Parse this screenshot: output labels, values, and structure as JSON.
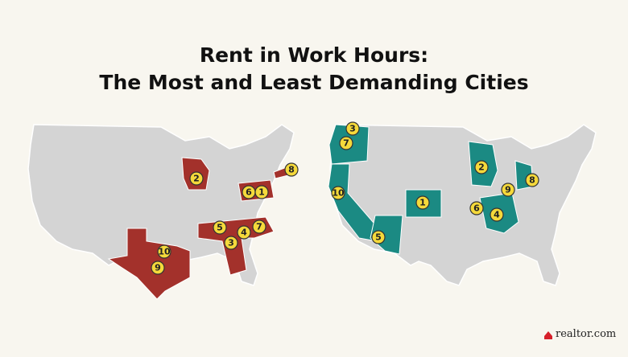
{
  "title": [
    "Rent in Work Hours:",
    "The Most and Least Demanding Cities"
  ],
  "maps": [
    {
      "markers": [
        "2",
        "8",
        "6",
        "1",
        "5",
        "4",
        "7",
        "3",
        "10",
        "9"
      ]
    },
    {
      "markers": [
        "3",
        "7",
        "2",
        "8",
        "9",
        "10",
        "1",
        "6",
        "4",
        "5"
      ]
    }
  ],
  "logo": "realtor.com"
}
